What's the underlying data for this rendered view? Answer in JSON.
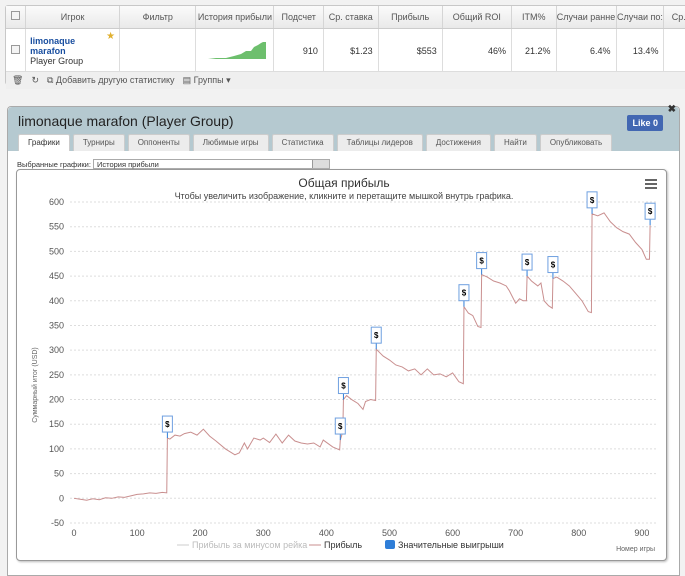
{
  "grid": {
    "headers": [
      "Игрок",
      "Фильтр",
      "История прибыли",
      "Подсчет",
      "Ср. ставка",
      "Прибыль",
      "Общий ROI",
      "ITM%",
      "Случаи ранне",
      "Случаи по:",
      "Ср."
    ],
    "row": {
      "player_name": "limonaque marafon",
      "player_type": "Player Group",
      "count": "910",
      "avg_stake": "$1.23",
      "profit": "$553",
      "roi": "46%",
      "itm": "21.2%",
      "early": "6.4%",
      "late": "13.4%"
    },
    "toolbar": {
      "add_stat": "Добавить другую статистику",
      "groups": "Группы"
    }
  },
  "panel": {
    "title": "limonaque marafon (Player Group)",
    "like": "Like 0",
    "tabs": [
      "Графики",
      "Турниры",
      "Оппоненты",
      "Любимые игры",
      "Статистика",
      "Таблицы лидеров",
      "Достижения",
      "Найти",
      "Опубликовать"
    ],
    "selector_label": "Выбранные графики:",
    "selector_value": "История прибыли"
  },
  "chart_data": {
    "type": "line",
    "title": "Общая прибыль",
    "subtitle": "Чтобы увеличить изображение, кликните и перетащите мышкой внутрь графика.",
    "xlabel": "Номер игры",
    "ylabel": "Суммарный итог (USD)",
    "xlim": [
      0,
      920
    ],
    "ylim": [
      -50,
      600
    ],
    "xticks": [
      0,
      100,
      200,
      300,
      400,
      500,
      600,
      700,
      800,
      900
    ],
    "yticks": [
      -50,
      0,
      50,
      100,
      150,
      200,
      250,
      300,
      350,
      400,
      450,
      500,
      550,
      600
    ],
    "legend": [
      "Прибыль за минусом рейка",
      "Прибыль",
      "Значительные выигрыши"
    ],
    "colors": {
      "profit": "#c98f8f",
      "rake": "#cccccc",
      "big_win": "#2f7ed8"
    },
    "big_win_symbol": "$",
    "series": [
      {
        "name": "Прибыль",
        "points": [
          [
            0,
            0
          ],
          [
            10,
            -2
          ],
          [
            20,
            -4
          ],
          [
            30,
            -1
          ],
          [
            40,
            -3
          ],
          [
            50,
            1
          ],
          [
            60,
            0
          ],
          [
            70,
            3
          ],
          [
            80,
            2
          ],
          [
            90,
            5
          ],
          [
            100,
            8
          ],
          [
            110,
            9
          ],
          [
            120,
            11
          ],
          [
            130,
            10
          ],
          [
            140,
            12
          ],
          [
            147,
            11
          ],
          [
            148,
            122
          ],
          [
            152,
            120
          ],
          [
            160,
            128
          ],
          [
            168,
            126
          ],
          [
            175,
            131
          ],
          [
            185,
            134
          ],
          [
            195,
            128
          ],
          [
            205,
            140
          ],
          [
            215,
            126
          ],
          [
            225,
            116
          ],
          [
            240,
            100
          ],
          [
            255,
            88
          ],
          [
            262,
            92
          ],
          [
            270,
            112
          ],
          [
            275,
            100
          ],
          [
            285,
            122
          ],
          [
            295,
            118
          ],
          [
            300,
            122
          ],
          [
            310,
            113
          ],
          [
            320,
            130
          ],
          [
            330,
            112
          ],
          [
            340,
            128
          ],
          [
            350,
            116
          ],
          [
            360,
            112
          ],
          [
            370,
            110
          ],
          [
            380,
            112
          ],
          [
            390,
            104
          ],
          [
            395,
            118
          ],
          [
            410,
            104
          ],
          [
            421,
            98
          ],
          [
            422,
            118
          ],
          [
            426,
            135
          ],
          [
            427,
            200
          ],
          [
            432,
            208
          ],
          [
            440,
            200
          ],
          [
            450,
            192
          ],
          [
            458,
            180
          ],
          [
            462,
            196
          ],
          [
            470,
            200
          ],
          [
            478,
            198
          ],
          [
            479,
            302
          ],
          [
            490,
            288
          ],
          [
            500,
            280
          ],
          [
            510,
            270
          ],
          [
            520,
            266
          ],
          [
            530,
            258
          ],
          [
            540,
            262
          ],
          [
            550,
            250
          ],
          [
            560,
            262
          ],
          [
            570,
            250
          ],
          [
            580,
            252
          ],
          [
            590,
            246
          ],
          [
            600,
            254
          ],
          [
            610,
            236
          ],
          [
            617,
            232
          ],
          [
            618,
            388
          ],
          [
            625,
            375
          ],
          [
            632,
            370
          ],
          [
            640,
            348
          ],
          [
            645,
            346
          ],
          [
            646,
            453
          ],
          [
            655,
            448
          ],
          [
            665,
            440
          ],
          [
            675,
            436
          ],
          [
            685,
            430
          ],
          [
            690,
            420
          ],
          [
            700,
            395
          ],
          [
            706,
            404
          ],
          [
            712,
            400
          ],
          [
            717,
            400
          ],
          [
            718,
            450
          ],
          [
            725,
            440
          ],
          [
            735,
            430
          ],
          [
            740,
            436
          ],
          [
            745,
            400
          ],
          [
            752,
            390
          ],
          [
            758,
            385
          ],
          [
            759,
            445
          ],
          [
            765,
            448
          ],
          [
            775,
            440
          ],
          [
            785,
            430
          ],
          [
            795,
            415
          ],
          [
            805,
            400
          ],
          [
            815,
            378
          ],
          [
            820,
            376
          ],
          [
            821,
            576
          ],
          [
            830,
            572
          ],
          [
            840,
            578
          ],
          [
            850,
            560
          ],
          [
            860,
            548
          ],
          [
            870,
            540
          ],
          [
            880,
            535
          ],
          [
            890,
            518
          ],
          [
            900,
            504
          ],
          [
            907,
            484
          ],
          [
            912,
            484
          ],
          [
            913,
            553
          ]
        ]
      }
    ],
    "big_wins": [
      [
        148,
        122
      ],
      [
        422,
        118
      ],
      [
        427,
        200
      ],
      [
        479,
        302
      ],
      [
        618,
        388
      ],
      [
        646,
        453
      ],
      [
        718,
        450
      ],
      [
        759,
        445
      ],
      [
        821,
        576
      ],
      [
        913,
        553
      ]
    ]
  }
}
